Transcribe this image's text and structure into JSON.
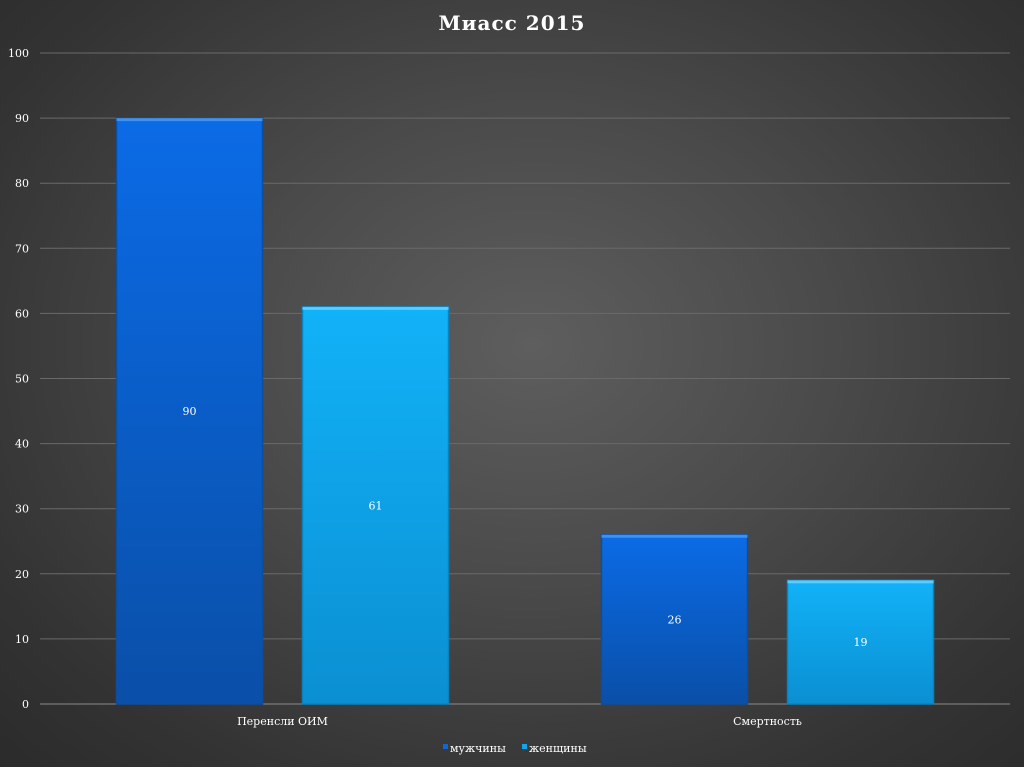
{
  "chart_data": {
    "type": "bar",
    "title": "Миасс 2015",
    "categories": [
      "Перенсли ОИМ",
      "Смертность"
    ],
    "series": [
      {
        "name": "мужчины",
        "values": [
          90,
          26
        ],
        "color": "#1066d6"
      },
      {
        "name": "женщины",
        "values": [
          61,
          19
        ],
        "color": "#0fa6ee"
      }
    ],
    "ylim": [
      0,
      100
    ],
    "yticks": [
      0,
      10,
      20,
      30,
      40,
      50,
      60,
      70,
      80,
      90,
      100
    ],
    "grid": true,
    "legend_position": "bottom",
    "xlabel": "",
    "ylabel": ""
  }
}
